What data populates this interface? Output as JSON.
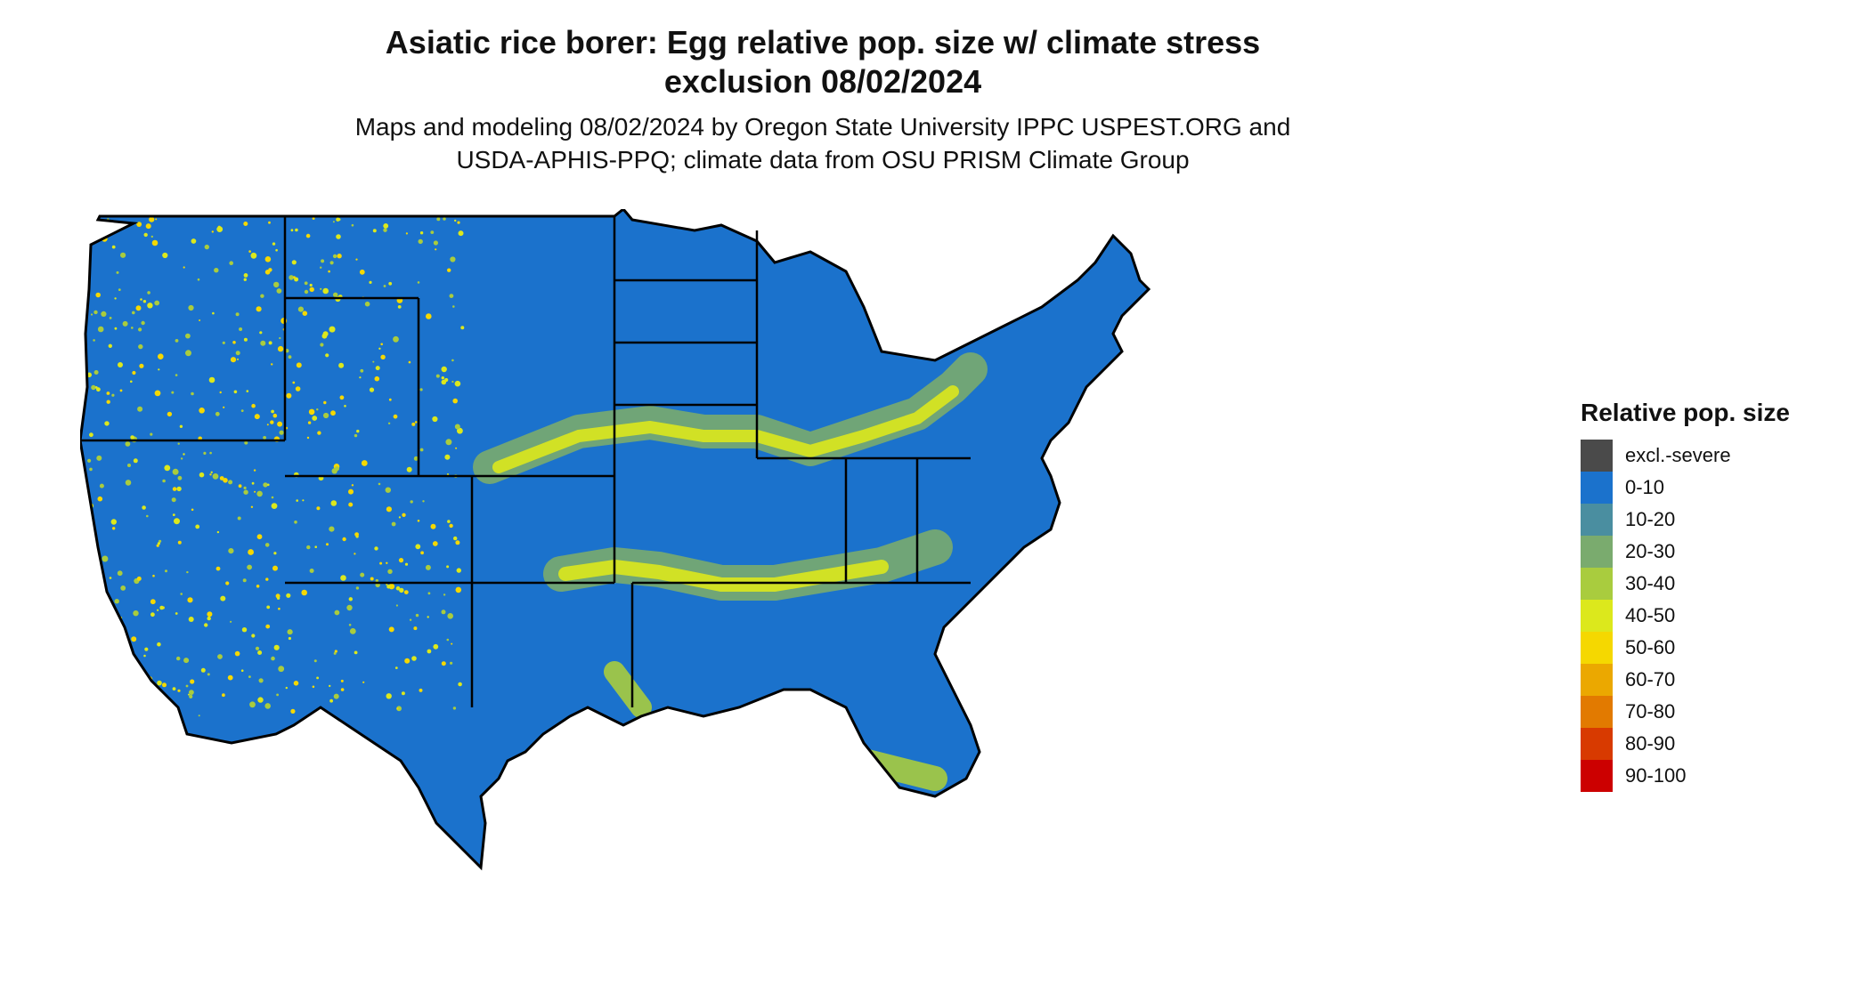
{
  "title_line1": "Asiatic rice borer: Egg relative pop. size w/ climate stress",
  "title_line2": "exclusion 08/02/2024",
  "subtitle_line1": "Maps and modeling 08/02/2024 by Oregon State University IPPC USPEST.ORG and",
  "subtitle_line2": "USDA-APHIS-PPQ; climate data from OSU PRISM Climate Group",
  "legend": {
    "title": "Relative pop. size",
    "items": [
      {
        "label": "excl.-severe",
        "color": "#4a4a4a"
      },
      {
        "label": "0-10",
        "color": "#1b72cc"
      },
      {
        "label": "10-20",
        "color": "#4a8ea0"
      },
      {
        "label": "20-30",
        "color": "#7aab6e"
      },
      {
        "label": "30-40",
        "color": "#a9cc3e"
      },
      {
        "label": "40-50",
        "color": "#dce81c"
      },
      {
        "label": "50-60",
        "color": "#f5d800"
      },
      {
        "label": "60-70",
        "color": "#eba800"
      },
      {
        "label": "70-80",
        "color": "#e27a00"
      },
      {
        "label": "80-90",
        "color": "#d83a00"
      },
      {
        "label": "90-100",
        "color": "#cc0000"
      }
    ]
  },
  "map": {
    "base_color": "#1b72cc",
    "border_color": "#000000"
  }
}
